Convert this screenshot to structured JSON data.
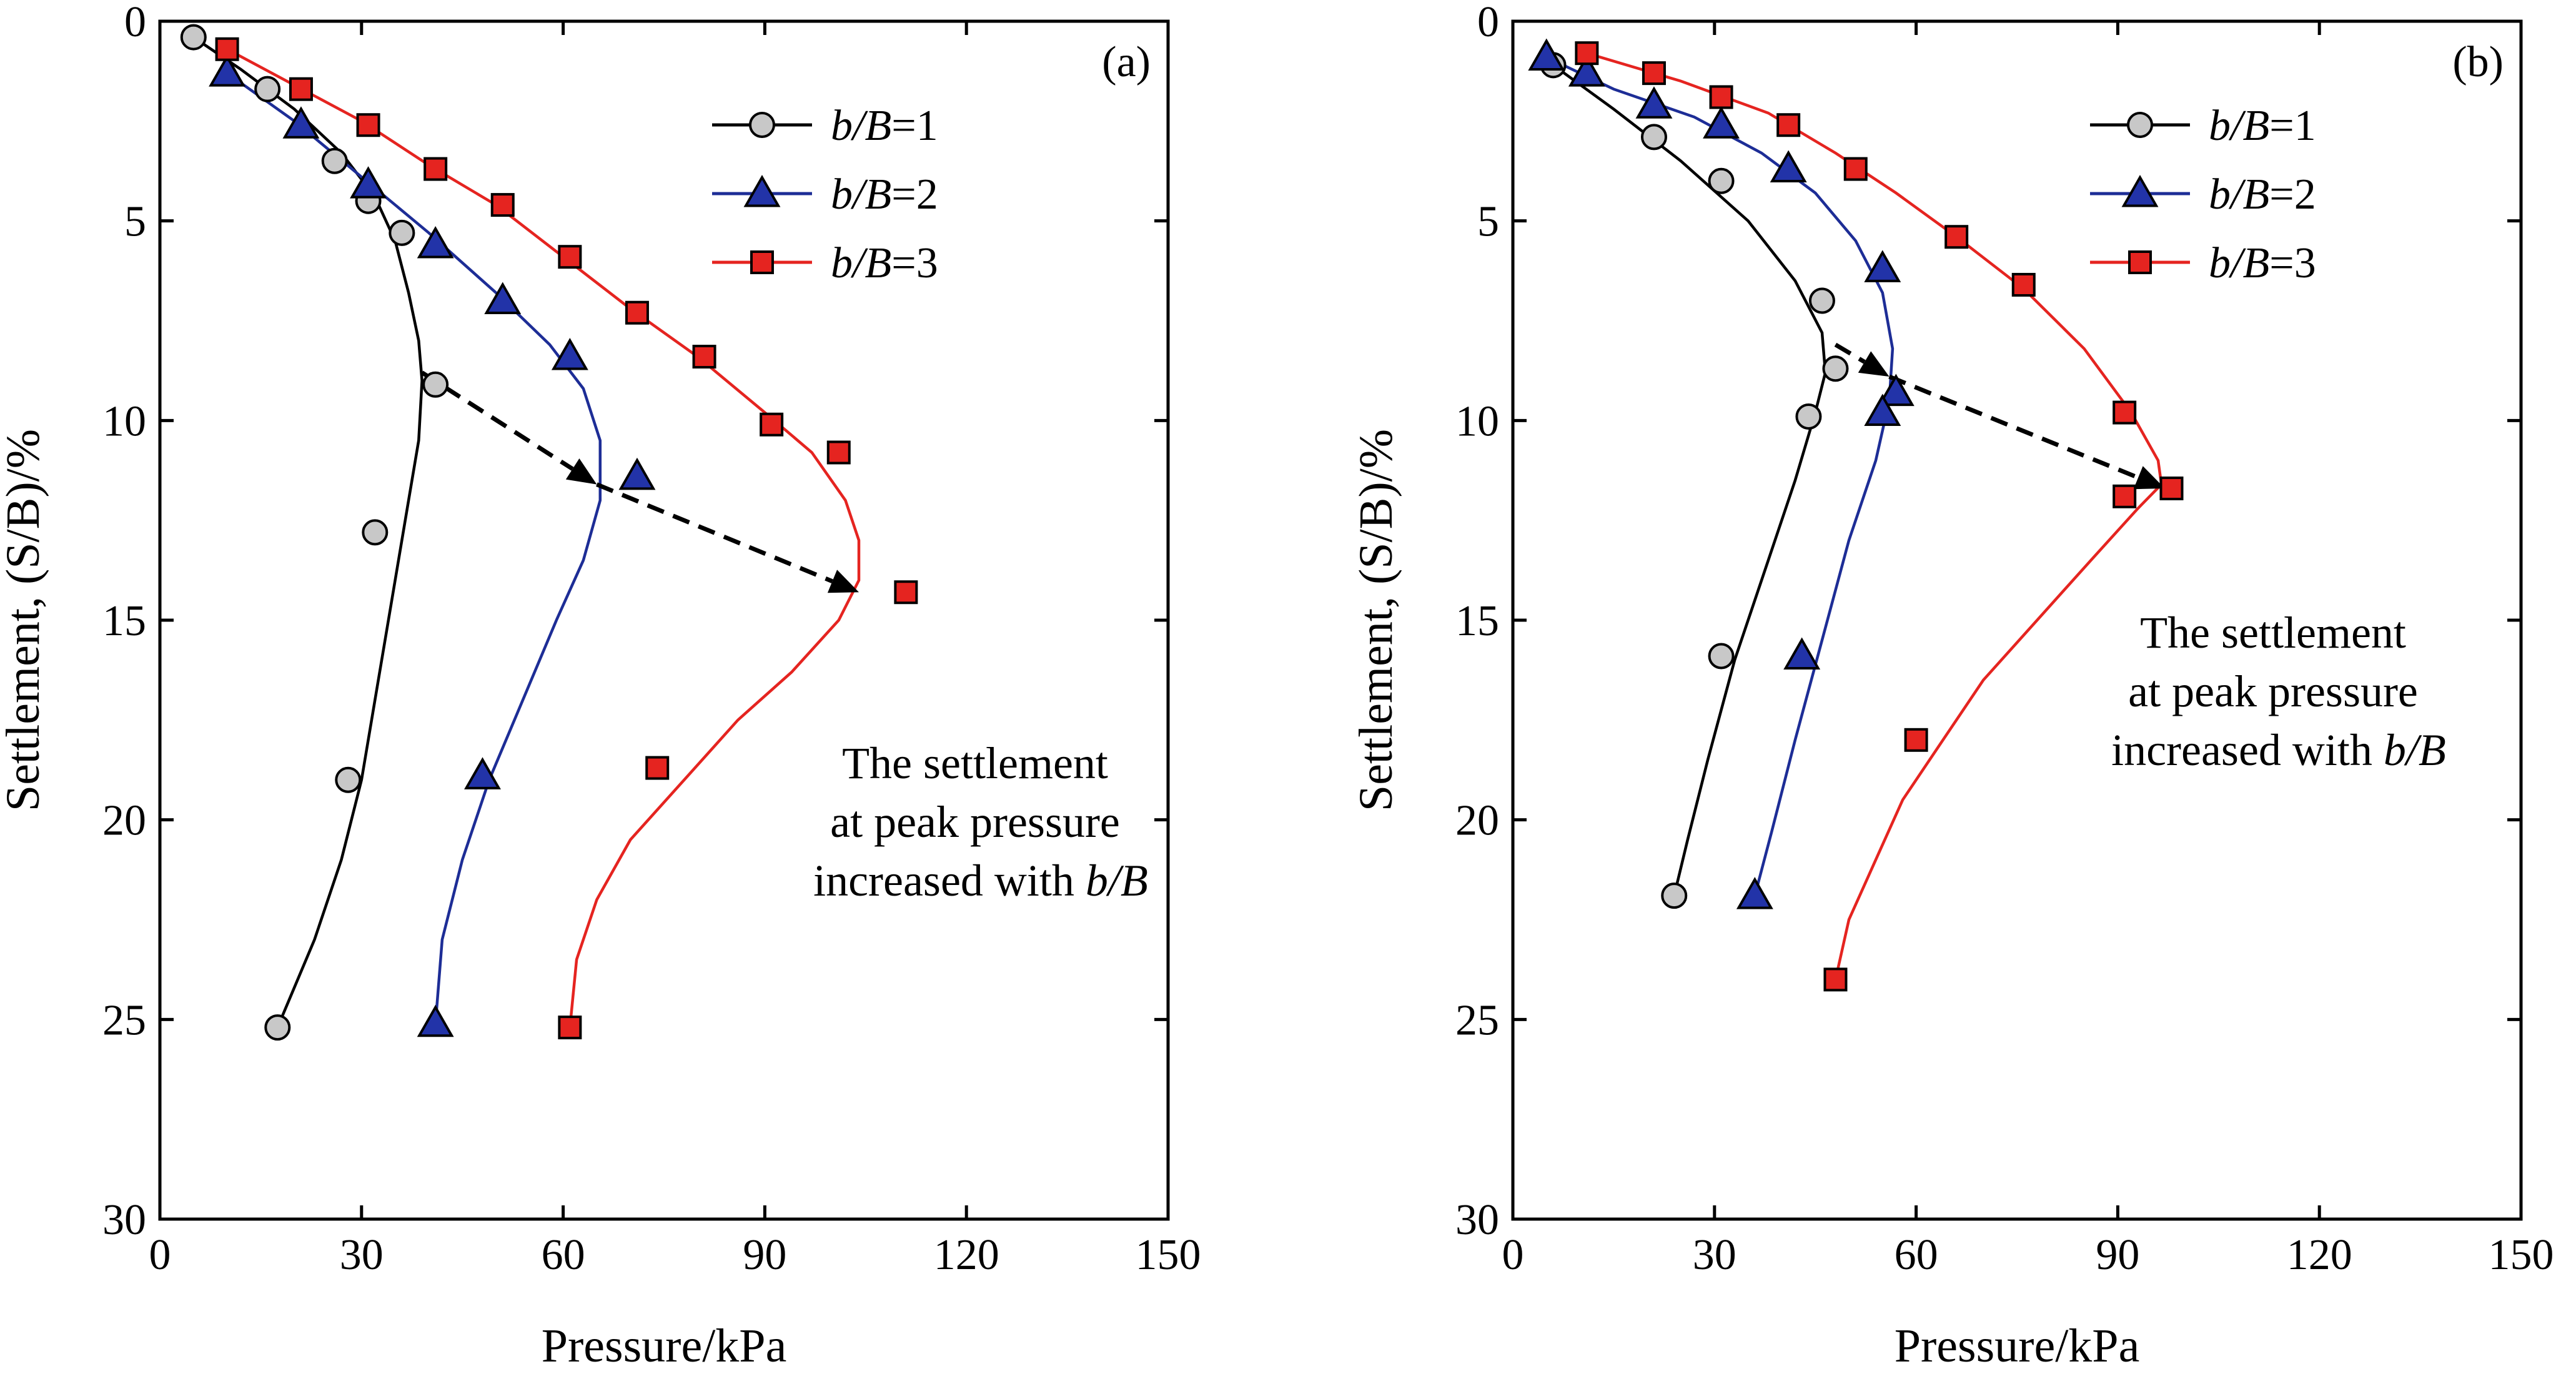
{
  "chart_data": [
    {
      "type": "scatter",
      "panel_label": "(a)",
      "xlabel": "Pressure/kPa",
      "ylabel": "Settlement, (S/B)/%",
      "xlim": [
        0,
        150
      ],
      "ylim": [
        0,
        30
      ],
      "y_inverted": true,
      "x_ticks": [
        "0",
        "30",
        "60",
        "90",
        "120",
        "150"
      ],
      "y_ticks": [
        "0",
        "5",
        "10",
        "15",
        "20",
        "25",
        "30"
      ],
      "legend_position": "top-right",
      "series": [
        {
          "name": "b/B=1",
          "legend_prefix": "b/B",
          "legend_suffix": "=1",
          "marker": "circle",
          "color": "#000000",
          "fill": "#c8c8c8",
          "points": [
            [
              5,
              0.4
            ],
            [
              16,
              1.7
            ],
            [
              26,
              3.5
            ],
            [
              31,
              4.5
            ],
            [
              36,
              5.3
            ],
            [
              41,
              9.1
            ],
            [
              32,
              12.8
            ],
            [
              28,
              19.0
            ],
            [
              17.5,
              25.2
            ]
          ],
          "fit": [
            [
              5,
              0.4
            ],
            [
              12,
              1.2
            ],
            [
              20,
              2.2
            ],
            [
              27,
              3.3
            ],
            [
              32,
              4.4
            ],
            [
              35,
              5.5
            ],
            [
              37,
              6.8
            ],
            [
              38.5,
              8.0
            ],
            [
              39,
              9.0
            ],
            [
              38.5,
              10.5
            ],
            [
              37,
              12
            ],
            [
              35,
              14
            ],
            [
              32,
              17
            ],
            [
              30,
              19
            ],
            [
              27,
              21
            ],
            [
              23,
              23
            ],
            [
              17.5,
              25.2
            ]
          ]
        },
        {
          "name": "b/B=2",
          "legend_prefix": "b/B",
          "legend_suffix": "=2",
          "marker": "triangle",
          "color": "#1d2d96",
          "fill": "#2233a8",
          "points": [
            [
              10,
              1.3
            ],
            [
              21,
              2.6
            ],
            [
              31,
              4.1
            ],
            [
              41,
              5.6
            ],
            [
              51,
              7.0
            ],
            [
              61,
              8.4
            ],
            [
              71,
              11.4
            ],
            [
              48,
              18.9
            ],
            [
              41,
              25.1
            ]
          ],
          "fit": [
            [
              10,
              1.3
            ],
            [
              20,
              2.5
            ],
            [
              30,
              3.9
            ],
            [
              40,
              5.3
            ],
            [
              50,
              6.8
            ],
            [
              58,
              8.1
            ],
            [
              63,
              9.2
            ],
            [
              65.5,
              10.5
            ],
            [
              65.5,
              12
            ],
            [
              63,
              13.5
            ],
            [
              59,
              15
            ],
            [
              54,
              17
            ],
            [
              49,
              19
            ],
            [
              45,
              21
            ],
            [
              42,
              23
            ],
            [
              41,
              25.1
            ]
          ]
        },
        {
          "name": "b/B=3",
          "legend_prefix": "b/B",
          "legend_suffix": "=3",
          "marker": "square",
          "color": "#e52420",
          "fill": "#e52420",
          "points": [
            [
              10,
              0.7
            ],
            [
              21,
              1.7
            ],
            [
              31,
              2.6
            ],
            [
              41,
              3.7
            ],
            [
              51,
              4.6
            ],
            [
              61,
              5.9
            ],
            [
              71,
              7.3
            ],
            [
              81,
              8.4
            ],
            [
              91,
              10.1
            ],
            [
              101,
              10.8
            ],
            [
              111,
              14.3
            ],
            [
              74,
              18.7
            ],
            [
              61,
              25.2
            ]
          ],
          "fit": [
            [
              10,
              0.7
            ],
            [
              20,
              1.6
            ],
            [
              30,
              2.5
            ],
            [
              40,
              3.6
            ],
            [
              50,
              4.6
            ],
            [
              60,
              5.9
            ],
            [
              70,
              7.2
            ],
            [
              80,
              8.4
            ],
            [
              90,
              9.8
            ],
            [
              97,
              10.8
            ],
            [
              102,
              12
            ],
            [
              104,
              13
            ],
            [
              104,
              14
            ],
            [
              101,
              15
            ],
            [
              94,
              16.3
            ],
            [
              86,
              17.5
            ],
            [
              78,
              19
            ],
            [
              70,
              20.5
            ],
            [
              65,
              22
            ],
            [
              62,
              23.5
            ],
            [
              61,
              25.2
            ]
          ]
        }
      ],
      "arrow_points": [
        [
          39,
          8.8
        ],
        [
          65,
          11.6
        ],
        [
          104,
          14.3
        ]
      ],
      "annotation": {
        "line1": "The settlement",
        "line2": "at peak pressure",
        "line3": "increased with ",
        "line3_ital": "b/B"
      }
    },
    {
      "type": "scatter",
      "panel_label": "(b)",
      "xlabel": "Pressure/kPa",
      "ylabel": "Settlement, (S/B)/%",
      "xlim": [
        0,
        150
      ],
      "ylim": [
        0,
        30
      ],
      "y_inverted": true,
      "x_ticks": [
        "0",
        "30",
        "60",
        "90",
        "120",
        "150"
      ],
      "y_ticks": [
        "0",
        "5",
        "10",
        "15",
        "20",
        "25",
        "30"
      ],
      "legend_position": "top-right",
      "series": [
        {
          "name": "b/B=1",
          "legend_prefix": "b/B",
          "legend_suffix": "=1",
          "marker": "circle",
          "color": "#000000",
          "fill": "#c8c8c8",
          "points": [
            [
              6,
              1.1
            ],
            [
              21,
              2.9
            ],
            [
              31,
              4.0
            ],
            [
              46,
              7.0
            ],
            [
              48,
              8.7
            ],
            [
              44,
              9.9
            ],
            [
              31,
              15.9
            ],
            [
              24,
              21.9
            ]
          ],
          "fit": [
            [
              6,
              1.1
            ],
            [
              15,
              2.2
            ],
            [
              25,
              3.5
            ],
            [
              35,
              5.0
            ],
            [
              42,
              6.5
            ],
            [
              46,
              7.8
            ],
            [
              46.5,
              8.8
            ],
            [
              45,
              9.8
            ],
            [
              42,
              11.5
            ],
            [
              38,
              13.5
            ],
            [
              33,
              16
            ],
            [
              29,
              18.5
            ],
            [
              26,
              20.5
            ],
            [
              24,
              21.9
            ]
          ]
        },
        {
          "name": "b/B=2",
          "legend_prefix": "b/B",
          "legend_suffix": "=2",
          "marker": "triangle",
          "color": "#1d2d96",
          "fill": "#2233a8",
          "points": [
            [
              5,
              0.9
            ],
            [
              11,
              1.3
            ],
            [
              21,
              2.1
            ],
            [
              31,
              2.6
            ],
            [
              41,
              3.7
            ],
            [
              55,
              6.2
            ],
            [
              57,
              9.3
            ],
            [
              55,
              9.8
            ],
            [
              43,
              15.9
            ],
            [
              36,
              21.9
            ]
          ],
          "fit": [
            [
              5,
              0.9
            ],
            [
              15,
              1.7
            ],
            [
              27,
              2.4
            ],
            [
              37,
              3.3
            ],
            [
              45,
              4.3
            ],
            [
              51,
              5.5
            ],
            [
              55,
              6.8
            ],
            [
              56.5,
              8.2
            ],
            [
              56,
              9.5
            ],
            [
              54,
              11
            ],
            [
              50,
              13
            ],
            [
              46,
              15.5
            ],
            [
              42,
              18
            ],
            [
              38.5,
              20.3
            ],
            [
              36,
              21.9
            ]
          ]
        },
        {
          "name": "b/B=3",
          "legend_prefix": "b/B",
          "legend_suffix": "=3",
          "marker": "square",
          "color": "#e52420",
          "fill": "#e52420",
          "points": [
            [
              11,
              0.8
            ],
            [
              21,
              1.3
            ],
            [
              31,
              1.9
            ],
            [
              41,
              2.6
            ],
            [
              51,
              3.7
            ],
            [
              66,
              5.4
            ],
            [
              76,
              6.6
            ],
            [
              91,
              9.8
            ],
            [
              91,
              11.9
            ],
            [
              98,
              11.7
            ],
            [
              60,
              18.0
            ],
            [
              48,
              24.0
            ]
          ],
          "fit": [
            [
              11,
              0.8
            ],
            [
              25,
              1.5
            ],
            [
              38,
              2.3
            ],
            [
              48,
              3.3
            ],
            [
              57,
              4.3
            ],
            [
              66,
              5.4
            ],
            [
              76,
              6.7
            ],
            [
              85,
              8.2
            ],
            [
              92,
              9.8
            ],
            [
              96,
              11
            ],
            [
              96.5,
              11.6
            ],
            [
              93,
              12.2
            ],
            [
              86,
              13.5
            ],
            [
              78,
              15
            ],
            [
              70,
              16.5
            ],
            [
              64,
              18
            ],
            [
              58,
              19.5
            ],
            [
              54,
              21
            ],
            [
              50,
              22.5
            ],
            [
              48,
              24.0
            ]
          ]
        }
      ],
      "arrow_points": [
        [
          48,
          8.1
        ],
        [
          56,
          8.9
        ],
        [
          97,
          11.7
        ]
      ],
      "annotation": {
        "line1": "The settlement",
        "line2": "at peak pressure",
        "line3": "increased with ",
        "line3_ital": "b/B"
      }
    }
  ]
}
